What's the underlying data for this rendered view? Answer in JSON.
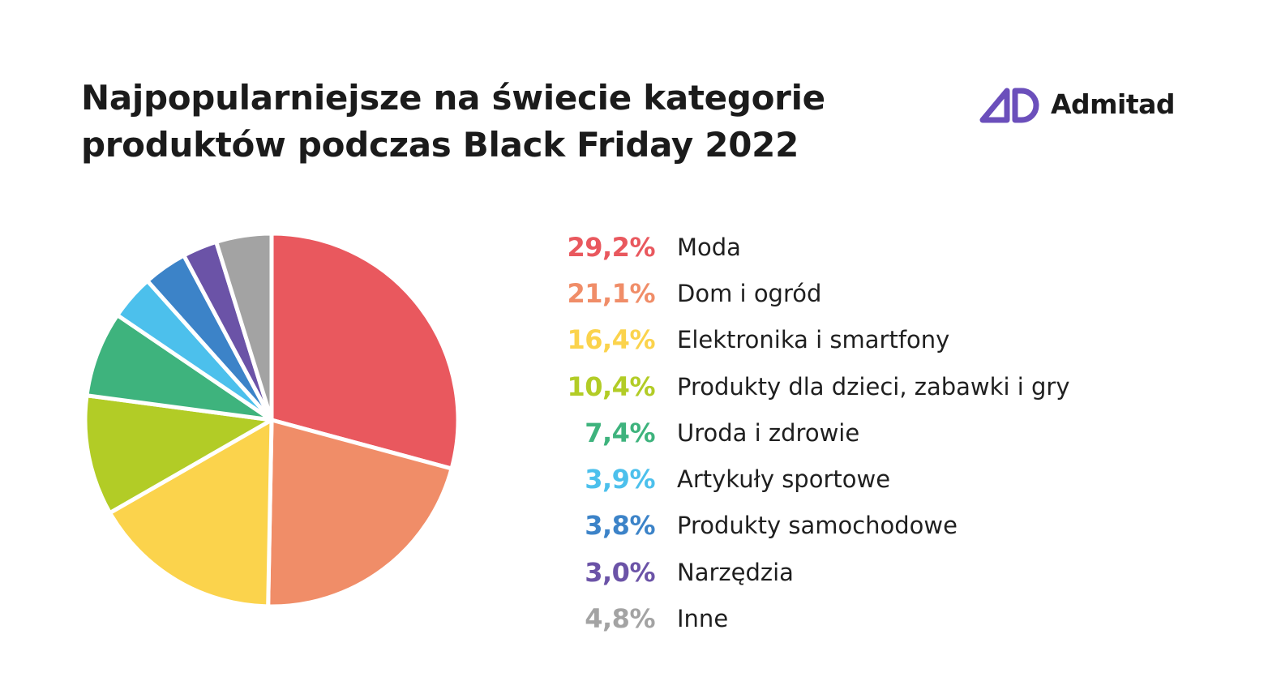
{
  "title": {
    "line1": "Najpopularniejsze na świecie kategorie",
    "line2": "produktów podczas Black Friday 2022"
  },
  "logo": {
    "icon": "admitad-logo-icon",
    "text": "Admitad",
    "color": "#6b4fbb"
  },
  "chart_data": {
    "type": "pie",
    "title": "Najpopularniejsze na świecie kategorie produktów podczas Black Friday 2022",
    "categories": [
      "Moda",
      "Dom i ogród",
      "Elektronika i smartfony",
      "Produkty dla dzieci, zabawki i gry",
      "Uroda i zdrowie",
      "Artykuły sportowe",
      "Produkty samochodowe",
      "Narzędzia",
      "Inne"
    ],
    "values": [
      29.2,
      21.1,
      16.4,
      10.4,
      7.4,
      3.9,
      3.8,
      3.0,
      4.8
    ],
    "value_labels": [
      "29,2%",
      "21,1%",
      "16,4%",
      "10,4%",
      "7,4%",
      "3,9%",
      "3,8%",
      "3,0%",
      "4,8%"
    ],
    "colors": [
      "#e9585e",
      "#f08d68",
      "#fbd34c",
      "#b2cc26",
      "#3eb37d",
      "#4cc0ec",
      "#3c83c8",
      "#6b53a7",
      "#a3a3a3"
    ],
    "legend_position": "right",
    "start_angle": "12 o'clock",
    "direction": "clockwise"
  }
}
